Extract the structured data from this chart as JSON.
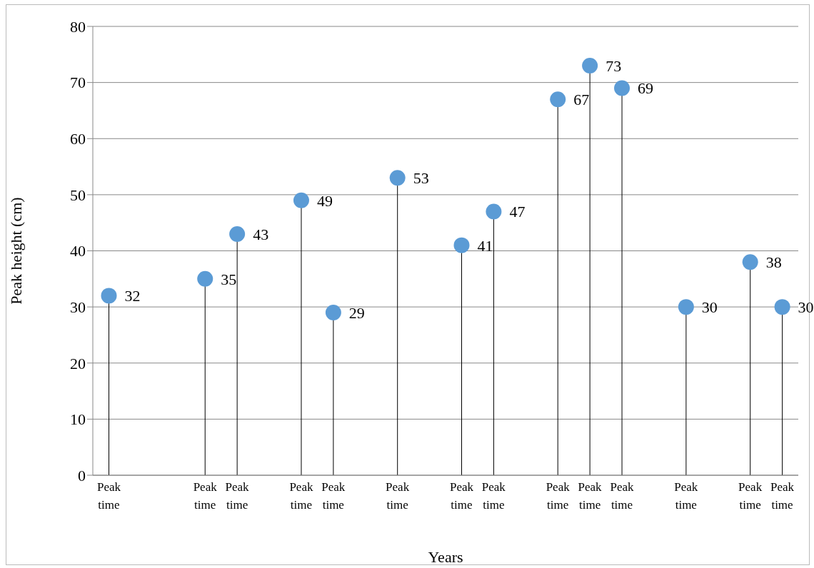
{
  "chart_data": {
    "type": "lollipop",
    "xlabel": "Years",
    "ylabel": "Peak height (cm)",
    "categories": [
      "Peak time",
      null,
      null,
      "Peak time",
      "Peak time",
      null,
      "Peak time",
      "Peak time",
      null,
      "Peak time",
      null,
      "Peak time",
      "Peak time",
      null,
      "Peak time",
      "Peak time",
      "Peak time",
      null,
      "Peak time",
      null,
      "Peak time",
      "Peak time"
    ],
    "values": [
      32,
      null,
      null,
      35,
      43,
      null,
      49,
      29,
      null,
      53,
      null,
      41,
      47,
      null,
      67,
      73,
      69,
      null,
      30,
      null,
      38,
      30
    ],
    "color": "#5b9bd5",
    "ylim": [
      0,
      80
    ],
    "yticks": [
      0,
      10,
      20,
      30,
      40,
      50,
      60,
      70,
      80
    ],
    "grid": "y",
    "data_labels": true
  }
}
